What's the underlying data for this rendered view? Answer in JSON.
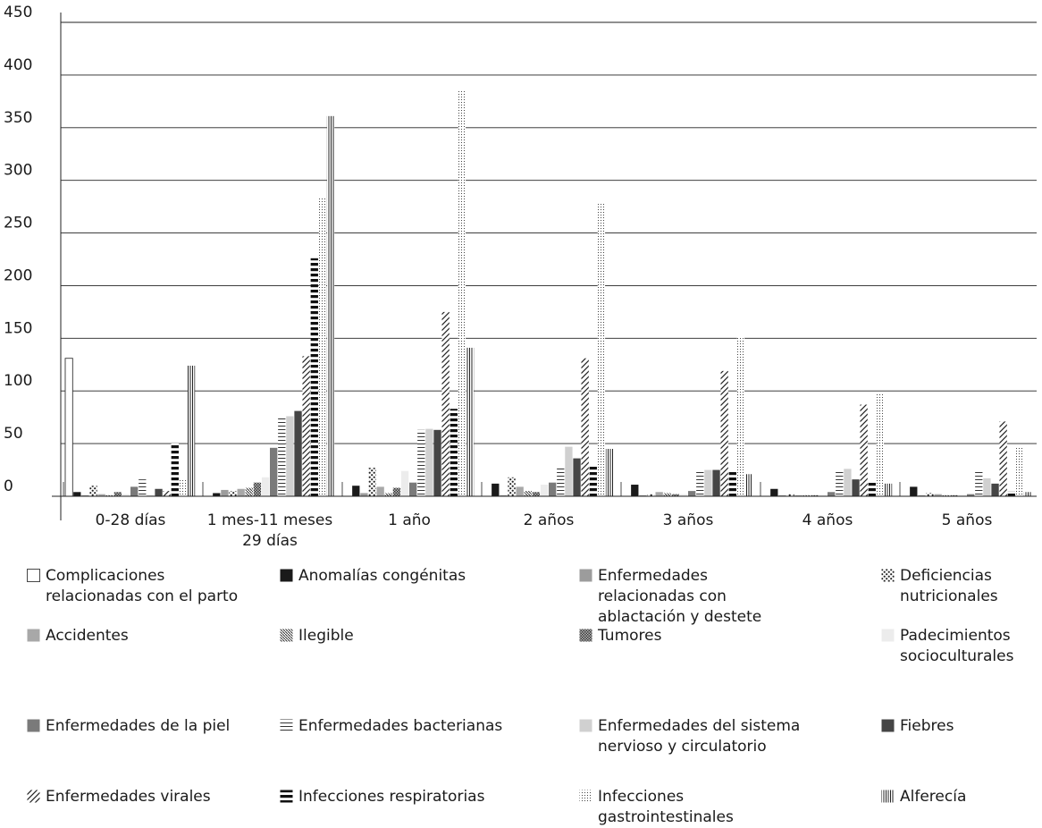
{
  "chart_data": {
    "type": "bar",
    "title": "",
    "xlabel": "",
    "ylabel": "",
    "ylim": [
      0,
      450
    ],
    "yticks": [
      0,
      50,
      100,
      150,
      200,
      250,
      300,
      350,
      400,
      450
    ],
    "grid": true,
    "legend_position": "bottom",
    "categories": [
      "0-28 días",
      "1 mes-11 meses 29 días",
      "1 año",
      "2 años",
      "3 años",
      "4 años",
      "5 años"
    ],
    "series": [
      {
        "name": "Complicaciones relacionadas con el parto",
        "values": [
          131,
          0,
          0,
          0,
          0,
          0,
          0
        ]
      },
      {
        "name": "Anomalías congénitas",
        "values": [
          4,
          3,
          10,
          12,
          11,
          7,
          9
        ]
      },
      {
        "name": "Enfermedades relacionadas con ablactación y destete",
        "values": [
          1,
          6,
          3,
          1,
          1,
          1,
          1
        ]
      },
      {
        "name": "Deficiencias nutricionales",
        "values": [
          10,
          5,
          27,
          18,
          2,
          2,
          3
        ]
      },
      {
        "name": "Accidentes",
        "values": [
          2,
          7,
          9,
          9,
          4,
          1,
          2
        ]
      },
      {
        "name": "Ilegible",
        "values": [
          1,
          8,
          3,
          5,
          3,
          1,
          1
        ]
      },
      {
        "name": "Tumores",
        "values": [
          4,
          13,
          8,
          4,
          2,
          1,
          1
        ]
      },
      {
        "name": "Padecimientos socioculturales",
        "values": [
          2,
          18,
          24,
          11,
          2,
          1,
          1
        ]
      },
      {
        "name": "Enfermedades de la piel",
        "values": [
          9,
          46,
          13,
          13,
          5,
          4,
          2
        ]
      },
      {
        "name": "Enfermedades bacterianas",
        "values": [
          16,
          74,
          63,
          28,
          24,
          25,
          23
        ]
      },
      {
        "name": "Enfermedades del sistema nervioso y circulatorio",
        "values": [
          1,
          76,
          64,
          47,
          25,
          26,
          17
        ]
      },
      {
        "name": "Fiebres",
        "values": [
          7,
          81,
          63,
          36,
          25,
          16,
          12
        ]
      },
      {
        "name": "Enfermedades virales",
        "values": [
          5,
          133,
          175,
          131,
          119,
          87,
          71
        ]
      },
      {
        "name": "Infecciones respiratorias",
        "values": [
          51,
          226,
          83,
          30,
          23,
          14,
          5
        ]
      },
      {
        "name": "Infecciones gastrointestinales",
        "values": [
          16,
          283,
          386,
          279,
          151,
          98,
          47
        ]
      },
      {
        "name": "Alferecía",
        "values": [
          124,
          361,
          141,
          45,
          21,
          12,
          4
        ]
      }
    ]
  }
}
